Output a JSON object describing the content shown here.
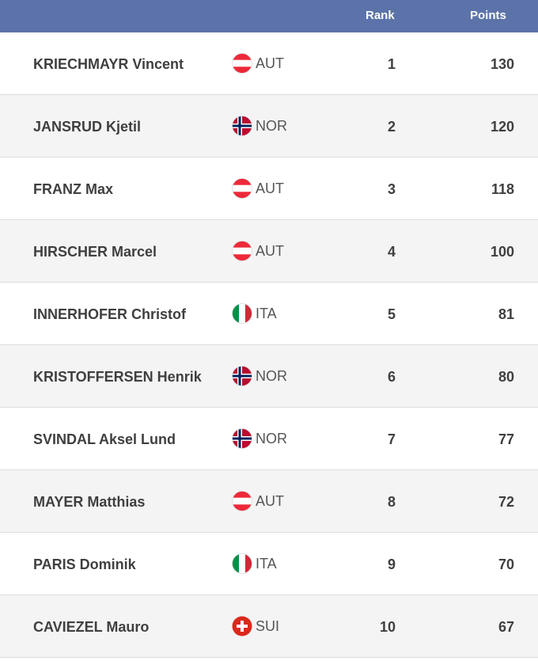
{
  "header": {
    "rank_label": "Rank",
    "points_label": "Points"
  },
  "rows": [
    {
      "name": "KRIECHMAYR Vincent",
      "flag": "AUT",
      "nation": "AUT",
      "rank": "1",
      "points": "130"
    },
    {
      "name": "JANSRUD Kjetil",
      "flag": "NOR",
      "nation": "NOR",
      "rank": "2",
      "points": "120"
    },
    {
      "name": "FRANZ Max",
      "flag": "AUT",
      "nation": "AUT",
      "rank": "3",
      "points": "118"
    },
    {
      "name": "HIRSCHER Marcel",
      "flag": "AUT",
      "nation": "AUT",
      "rank": "4",
      "points": "100"
    },
    {
      "name": "INNERHOFER Christof",
      "flag": "ITA",
      "nation": "ITA",
      "rank": "5",
      "points": "81"
    },
    {
      "name": "KRISTOFFERSEN Henrik",
      "flag": "NOR",
      "nation": "NOR",
      "rank": "6",
      "points": "80"
    },
    {
      "name": "SVINDAL Aksel Lund",
      "flag": "NOR",
      "nation": "NOR",
      "rank": "7",
      "points": "77"
    },
    {
      "name": "MAYER Matthias",
      "flag": "AUT",
      "nation": "AUT",
      "rank": "8",
      "points": "72"
    },
    {
      "name": "PARIS Dominik",
      "flag": "ITA",
      "nation": "ITA",
      "rank": "9",
      "points": "70"
    },
    {
      "name": "CAVIEZEL Mauro",
      "flag": "SUI",
      "nation": "SUI",
      "rank": "10",
      "points": "67"
    }
  ],
  "colors": {
    "header_bg": "#5b73a8",
    "row_alt_bg": "#f4f4f4",
    "text": "#3f3f3f"
  }
}
